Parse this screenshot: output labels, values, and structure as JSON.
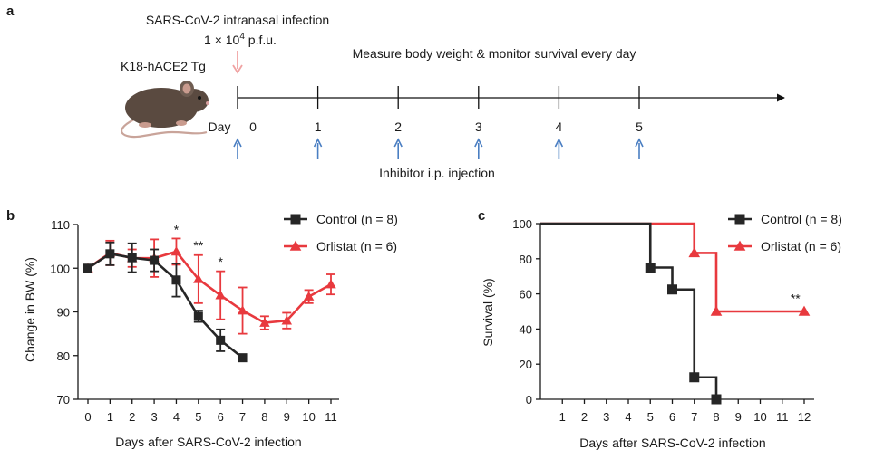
{
  "colors": {
    "control": "#262626",
    "orlistat": "#e8393e",
    "injection_arrow": "#4a7ec2",
    "infection_arrow": "#f0a3a3",
    "mouse": "#5a4a40"
  },
  "panel_a": {
    "panel_label": "a",
    "infection_line1": "SARS-CoV-2 intranasal infection",
    "dose_prefix": "1 × 10",
    "dose_exponent": "4",
    "dose_unit": " p.f.u.",
    "measure_text": "Measure body weight & monitor survival every day",
    "mouse_label": "K18-hACE2 Tg",
    "injection_text": "Inhibitor i.p. injection",
    "day_prefix": "Day",
    "timeline_days": [
      "0",
      "1",
      "2",
      "3",
      "4",
      "5"
    ]
  },
  "chart_data": [
    {
      "type": "line",
      "panel_label": "b",
      "xlabel": "Days after SARS-CoV-2 infection",
      "ylabel": "Change in BW (%)",
      "xlim": [
        0,
        11
      ],
      "ylim": [
        70,
        110
      ],
      "xticks": [
        "0",
        "1",
        "2",
        "3",
        "4",
        "5",
        "6",
        "7",
        "8",
        "9",
        "10",
        "11"
      ],
      "yticks": [
        "70",
        "80",
        "90",
        "100",
        "110"
      ],
      "legend_position": "top-right",
      "series": [
        {
          "name": "Control",
          "n_label": "(n = 8)",
          "marker": "square",
          "x": [
            0,
            1,
            2,
            3,
            4,
            5,
            6,
            7
          ],
          "y": [
            100,
            103.3,
            102.4,
            101.8,
            97.3,
            89,
            83.5,
            79.5
          ],
          "err": [
            0,
            2.6,
            3.3,
            2.5,
            3.8,
            1.3,
            2.5,
            0
          ]
        },
        {
          "name": "Orlistat",
          "n_label": "(n = 6)",
          "marker": "triangle",
          "x": [
            0,
            1,
            2,
            3,
            4,
            5,
            6,
            7,
            8,
            9,
            10,
            11
          ],
          "y": [
            100,
            103.5,
            102.3,
            102.3,
            103.8,
            97.5,
            93.8,
            90.3,
            87.5,
            88,
            93.5,
            96.3
          ],
          "err": [
            0,
            2.8,
            2,
            4.3,
            3,
            5.5,
            5.5,
            5.3,
            1.5,
            1.8,
            1.5,
            2.3
          ]
        }
      ],
      "annotations": [
        {
          "x": 4,
          "y": 107.8,
          "text": "*"
        },
        {
          "x": 5,
          "y": 104.2,
          "text": "**"
        },
        {
          "x": 6,
          "y": 100.5,
          "text": "*"
        }
      ]
    },
    {
      "type": "line",
      "panel_label": "c",
      "xlabel": "Days after SARS-CoV-2 infection",
      "ylabel": "Survival (%)",
      "xlim": [
        0,
        12
      ],
      "ylim": [
        0,
        100
      ],
      "xticks": [
        "1",
        "2",
        "3",
        "4",
        "5",
        "6",
        "7",
        "8",
        "9",
        "10",
        "11",
        "12"
      ],
      "yticks": [
        "0",
        "20",
        "40",
        "60",
        "80",
        "100"
      ],
      "legend_position": "top-right",
      "series": [
        {
          "name": "Control",
          "n_label": "(n = 8)",
          "marker": "square",
          "step_x": [
            0,
            5,
            5,
            6,
            6,
            7,
            7,
            8,
            8
          ],
          "step_y": [
            100,
            100,
            75,
            75,
            62.5,
            62.5,
            12.5,
            12.5,
            0
          ],
          "marker_x": [
            5,
            6,
            7,
            8
          ],
          "marker_y": [
            75,
            62.5,
            12.5,
            0
          ]
        },
        {
          "name": "Orlistat",
          "n_label": "(n = 6)",
          "marker": "triangle",
          "step_x": [
            0,
            7,
            7,
            8,
            8,
            12
          ],
          "step_y": [
            100,
            100,
            83.3,
            83.3,
            50,
            50
          ],
          "marker_x": [
            7,
            8,
            12
          ],
          "marker_y": [
            83.3,
            50,
            50
          ]
        }
      ],
      "annotations": [
        {
          "x": 11.6,
          "y": 55,
          "text": "**"
        }
      ]
    }
  ]
}
